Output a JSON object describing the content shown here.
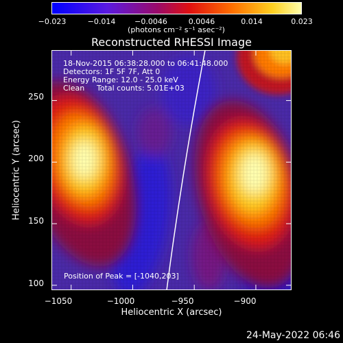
{
  "colorbar": {
    "ticks": [
      "−0.023",
      "−0.014",
      "−0.0046",
      "0.0046",
      "0.014",
      "0.023"
    ],
    "units": "(photons cm⁻² s⁻¹ asec⁻²)",
    "colors": [
      "#0000ff",
      "#6a00e8",
      "#b0004c",
      "#ff3000",
      "#ffb000",
      "#ffffa0"
    ]
  },
  "plot": {
    "title": "Reconstructed RHESSI Image",
    "annotations": {
      "time_range": "18-Nov-2015 06:38:28.000 to 06:41:48.000",
      "detectors": "Detectors: 1F 5F 7F, Att 0",
      "energy_range": "Energy Range: 12.0 - 25.0 keV",
      "clean_label": "Clean",
      "total_counts": "Total counts: 5.01E+03",
      "peak_position": "Position of Peak = [-1040,203]"
    },
    "xlabel": "Heliocentric X (arcsec)",
    "ylabel": "Heliocentric Y (arcsec)",
    "xticks": [
      "−1050",
      "−1000",
      "−950",
      "−900"
    ],
    "yticks": [
      "250",
      "200",
      "150",
      "100"
    ],
    "xlim": [
      -1066,
      -871
    ],
    "ylim": [
      96,
      291
    ],
    "xtick_values": [
      -1050,
      -1000,
      -950,
      -900
    ],
    "ytick_values": [
      250,
      200,
      150,
      100
    ],
    "sources": [
      {
        "x": -1040,
        "y": 203
      },
      {
        "x": -920,
        "y": 185
      },
      {
        "x": -900,
        "y": 285
      }
    ]
  },
  "footer": {
    "date": "24-May-2022 06:46"
  }
}
